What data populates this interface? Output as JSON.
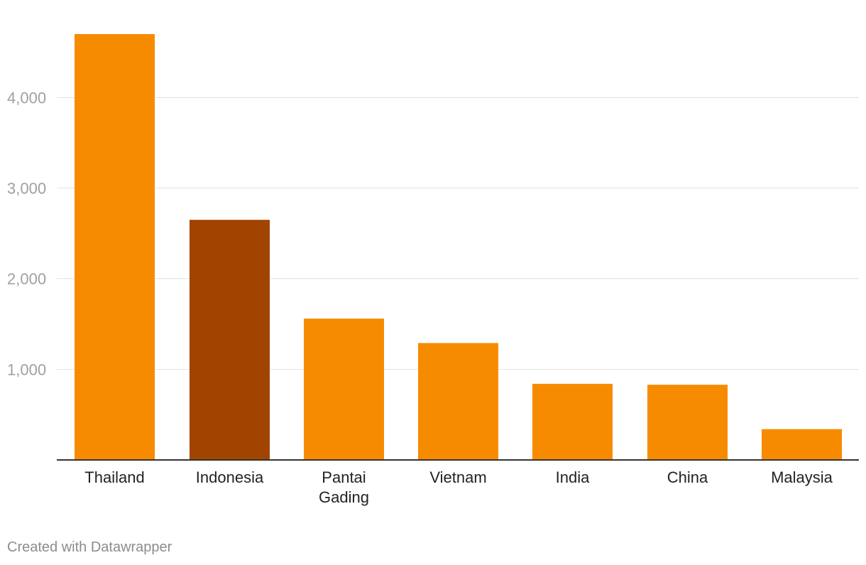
{
  "chart_data": {
    "type": "bar",
    "categories": [
      "Thailand",
      "Indonesia",
      "Pantai Gading",
      "Vietnam",
      "India",
      "China",
      "Malaysia"
    ],
    "category_lines": [
      [
        "Thailand"
      ],
      [
        "Indonesia"
      ],
      [
        "Pantai",
        "Gading"
      ],
      [
        "Vietnam"
      ],
      [
        "India"
      ],
      [
        "China"
      ],
      [
        "Malaysia"
      ]
    ],
    "values": [
      4700,
      2650,
      1560,
      1290,
      840,
      830,
      340
    ],
    "highlight_index": 1,
    "yticks": [
      1000,
      2000,
      3000,
      4000
    ],
    "ytick_labels": [
      "1,000",
      "2,000",
      "3,000",
      "4,000"
    ],
    "ylim": [
      0,
      4700
    ],
    "grid": true,
    "colors": {
      "bar": "#f78b00",
      "highlight": "#a04400",
      "grid": "#e1e1e1",
      "baseline": "#333333"
    },
    "title": "",
    "xlabel": "",
    "ylabel": ""
  },
  "footer": {
    "credit": "Created with Datawrapper"
  }
}
